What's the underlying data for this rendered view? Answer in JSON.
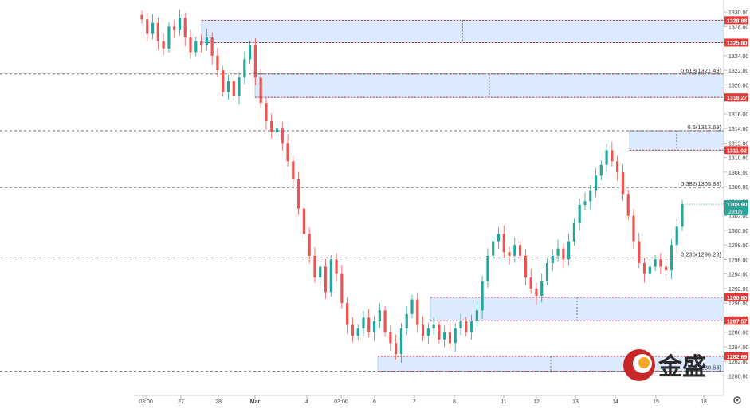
{
  "chart_data": {
    "type": "candlestick",
    "instrument_hint": "gold price",
    "x_tick_labels": [
      "03:00",
      "27",
      "28",
      "Mar",
      "4",
      "03:00",
      "6",
      "7",
      "8",
      "11",
      "12",
      "13",
      "14",
      "15",
      "18"
    ],
    "y_ticks": [
      1280,
      1282,
      1284,
      1286,
      1288,
      1290,
      1292,
      1294,
      1296,
      1298,
      1300,
      1302,
      1304,
      1306,
      1308,
      1310,
      1312,
      1314,
      1316,
      1318,
      1320,
      1322,
      1324,
      1326,
      1328,
      1330
    ],
    "ylim": [
      1278.4,
      1331.0
    ],
    "tick_labels_text": [
      "1330.00",
      "1328.00",
      "1326.00",
      "1324.00",
      "1322.00",
      "1320.00",
      "1318.00",
      "1316.00",
      "1314.00",
      "1312.00",
      "1310.00",
      "1308.00",
      "1306.00",
      "1304.00",
      "1302.00",
      "1300.00",
      "1298.00",
      "1296.00",
      "1294.00",
      "1292.00",
      "1290.00",
      "1288.00",
      "1286.00",
      "1284.00",
      "1282.00",
      "1280.00",
      "1278.00"
    ],
    "colors": {
      "up": "#26a69a",
      "down": "#ef5350",
      "zone_fill": "#dbeafe",
      "zone_edge": "#d32f2f",
      "level_tag": "#e53935",
      "price_tag": "#26a69a",
      "dashed": "#555555"
    },
    "price_levels": [
      {
        "label": "1328.88",
        "value": 1328.88
      },
      {
        "label": "1325.80",
        "value": 1325.8
      },
      {
        "label": "1318.27",
        "value": 1318.27
      },
      {
        "label": "1311.02",
        "value": 1311.02
      },
      {
        "label": "1290.80",
        "value": 1290.8
      },
      {
        "label": "1287.57",
        "value": 1287.57
      },
      {
        "label": "1282.69",
        "value": 1282.69
      }
    ],
    "current_price": {
      "label": "1303.60",
      "value": 1303.6,
      "countdown": "28:06"
    },
    "fib_levels": [
      {
        "label": "0.618(1321.49)",
        "value": 1321.49
      },
      {
        "label": "0.5(1313.69)",
        "value": 1313.69
      },
      {
        "label": "0.382(1305.88)",
        "value": 1305.88
      },
      {
        "label": "0.236(1296.23)",
        "value": 1296.23
      },
      {
        "label": "(1280.63)",
        "value": 1280.63
      }
    ],
    "zones": [
      {
        "x_start": "27",
        "top": 1328.88,
        "bottom": 1325.8
      },
      {
        "x_start": "Mar",
        "top": 1321.49,
        "bottom": 1318.27
      },
      {
        "x_start": "14",
        "top": 1313.69,
        "bottom": 1311.02
      },
      {
        "x_start": "7",
        "top": 1290.8,
        "bottom": 1287.57
      },
      {
        "x_start": "6",
        "top": 1282.69,
        "bottom": 1280.63
      }
    ],
    "closes": [
      1329.0,
      1327.0,
      1328.5,
      1326.0,
      1325.0,
      1328.0,
      1327.5,
      1329.2,
      1326.5,
      1324.5,
      1326.0,
      1325.5,
      1326.5,
      1324.0,
      1322.0,
      1319.0,
      1320.5,
      1318.5,
      1321.0,
      1323.5,
      1325.5,
      1321.0,
      1317.5,
      1315.0,
      1313.5,
      1314.0,
      1312.0,
      1309.5,
      1307.0,
      1303.0,
      1299.5,
      1296.5,
      1293.5,
      1295.0,
      1291.5,
      1296.0,
      1294.0,
      1290.0,
      1287.0,
      1285.5,
      1286.5,
      1288.0,
      1286.0,
      1287.5,
      1289.0,
      1286.0,
      1284.5,
      1283.0,
      1286.5,
      1288.5,
      1290.5,
      1287.0,
      1285.5,
      1286.5,
      1287.0,
      1285.0,
      1286.0,
      1284.5,
      1286.5,
      1287.5,
      1286.0,
      1287.5,
      1289.0,
      1293.0,
      1296.5,
      1298.5,
      1299.5,
      1297.0,
      1296.5,
      1298.0,
      1296.5,
      1293.5,
      1292.0,
      1291.0,
      1293.0,
      1295.5,
      1296.5,
      1297.5,
      1296.0,
      1298.5,
      1301.0,
      1303.5,
      1304.0,
      1305.5,
      1307.5,
      1309.0,
      1311.0,
      1309.5,
      1308.0,
      1305.0,
      1302.0,
      1298.5,
      1295.5,
      1294.0,
      1295.0,
      1296.0,
      1295.0,
      1294.5,
      1298.0,
      1300.5,
      1303.6
    ]
  },
  "watermark": {
    "brand_text": "金盛"
  },
  "ui": {
    "settings_icon": "gear-icon"
  }
}
